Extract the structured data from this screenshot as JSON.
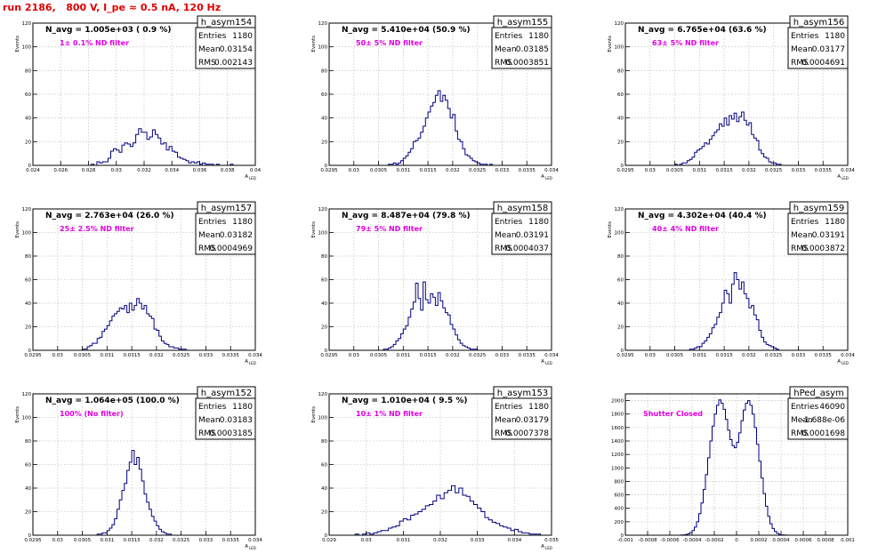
{
  "canvas_title": "run 2186,   800 V, I_pe ≈ 0.5 nA, 120 Hz",
  "colors": {
    "hist": "#000080",
    "title": "#e00000",
    "annotation": "#e000e0",
    "frame": "#000000"
  },
  "chart_data": [
    {
      "type": "histogram",
      "name": "h_asym154",
      "navg": "N_avg = 1.005e+03 ( 0.9 %)",
      "filter": "1± 0.1% ND filter",
      "stats": {
        "entries_label": "Entries",
        "entries": "1180",
        "mean_label": "Mean",
        "mean": "0.03154",
        "rms_label": "RMS",
        "rms": "0.002143"
      },
      "ylabel": "Events",
      "xlabel": "A",
      "xlabel_sub": "LED",
      "xlim": [
        0.024,
        0.04
      ],
      "ylim": [
        0,
        120
      ],
      "xticks": [
        "0.024",
        "0.026",
        "0.028",
        "0.03",
        "0.032",
        "0.034",
        "0.036",
        "0.038",
        "0.04"
      ],
      "yticks": [
        "0",
        "20",
        "40",
        "60",
        "80",
        "100",
        "120"
      ],
      "x0": 0.0282,
      "bw": 0.0002,
      "values": [
        1,
        0,
        3,
        2,
        3,
        3,
        6,
        12,
        14,
        13,
        11,
        17,
        19,
        18,
        16,
        19,
        26,
        31,
        28,
        28,
        22,
        24,
        30,
        26,
        23,
        18,
        19,
        13,
        16,
        12,
        11,
        7,
        6,
        5,
        4,
        2,
        3,
        2,
        3,
        1,
        2,
        1,
        1,
        1,
        0,
        1,
        0,
        0,
        0,
        0,
        1
      ]
    },
    {
      "type": "histogram",
      "name": "h_asym155",
      "navg": "N_avg = 5.410e+04 (50.9 %)",
      "filter": "50± 5% ND filter",
      "stats": {
        "entries_label": "Entries",
        "entries": "1180",
        "mean_label": "Mean",
        "mean": "0.03185",
        "rms_label": "RMS",
        "rms": "0.0003851"
      },
      "ylabel": "Events",
      "xlabel": "A",
      "xlabel_sub": "LED",
      "xlim": [
        0.0295,
        0.034
      ],
      "ylim": [
        0,
        120
      ],
      "xticks": [
        "0.0295",
        "0.03",
        "0.0305",
        "0.031",
        "0.0315",
        "0.032",
        "0.0325",
        "0.033",
        "0.0335",
        "0.034"
      ],
      "yticks": [
        "0",
        "20",
        "40",
        "60",
        "80",
        "100",
        "120"
      ],
      "x0": 0.0307,
      "bw": 5e-05,
      "values": [
        1,
        1,
        2,
        1,
        2,
        4,
        6,
        8,
        11,
        14,
        20,
        21,
        23,
        28,
        33,
        40,
        45,
        50,
        53,
        59,
        63,
        54,
        59,
        55,
        48,
        40,
        43,
        29,
        22,
        20,
        14,
        9,
        8,
        6,
        4,
        3,
        2,
        1,
        1,
        1,
        0,
        1
      ]
    },
    {
      "type": "histogram",
      "name": "h_asym156",
      "navg": "N_avg = 6.765e+04 (63.6 %)",
      "filter": "63± 5% ND filter",
      "stats": {
        "entries_label": "Entries",
        "entries": "1180",
        "mean_label": "Mean",
        "mean": "0.03177",
        "rms_label": "RMS",
        "rms": "0.0004691"
      },
      "ylabel": "Events",
      "xlabel": "A",
      "xlabel_sub": "LED",
      "xlim": [
        0.0295,
        0.034
      ],
      "ylim": [
        0,
        120
      ],
      "xticks": [
        "0.0295",
        "0.03",
        "0.0305",
        "0.031",
        "0.0315",
        "0.032",
        "0.0325",
        "0.033",
        "0.0335",
        "0.034"
      ],
      "yticks": [
        "0",
        "20",
        "40",
        "60",
        "80",
        "100",
        "120"
      ],
      "x0": 0.0305,
      "bw": 5e-05,
      "values": [
        1,
        0,
        1,
        2,
        2,
        4,
        5,
        7,
        11,
        13,
        14,
        16,
        19,
        18,
        22,
        25,
        28,
        30,
        35,
        33,
        40,
        34,
        42,
        39,
        44,
        37,
        41,
        45,
        38,
        34,
        36,
        26,
        23,
        21,
        13,
        10,
        7,
        6,
        3,
        2,
        2,
        1,
        1
      ]
    },
    {
      "type": "histogram",
      "name": "h_asym157",
      "navg": "N_avg = 2.763e+04 (26.0 %)",
      "filter": "25± 2.5% ND filter",
      "stats": {
        "entries_label": "Entries",
        "entries": "1180",
        "mean_label": "Mean",
        "mean": "0.03182",
        "rms_label": "RMS",
        "rms": "0.0004969"
      },
      "ylabel": "Events",
      "xlabel": "A",
      "xlabel_sub": "LED",
      "xlim": [
        0.0295,
        0.034
      ],
      "ylim": [
        0,
        120
      ],
      "xticks": [
        "0.0295",
        "0.03",
        "0.0305",
        "0.031",
        "0.0315",
        "0.032",
        "0.0325",
        "0.033",
        "0.0335",
        "0.034"
      ],
      "yticks": [
        "0",
        "20",
        "40",
        "60",
        "80",
        "100",
        "120"
      ],
      "x0": 0.0305,
      "bw": 5e-05,
      "values": [
        1,
        1,
        3,
        4,
        6,
        6,
        10,
        11,
        16,
        18,
        21,
        25,
        29,
        31,
        33,
        36,
        35,
        38,
        32,
        40,
        34,
        38,
        44,
        40,
        35,
        38,
        31,
        29,
        27,
        18,
        17,
        12,
        8,
        6,
        5,
        3,
        3,
        2,
        2,
        1,
        1,
        1
      ]
    },
    {
      "type": "histogram",
      "name": "h_asym158",
      "navg": "N_avg = 8.487e+04 (79.8 %)",
      "filter": "79± 5% ND filter",
      "stats": {
        "entries_label": "Entries",
        "entries": "1180",
        "mean_label": "Mean",
        "mean": "0.03191",
        "rms_label": "RMS",
        "rms": "0.0004037"
      },
      "ylabel": "Events",
      "xlabel": "A",
      "xlabel_sub": "LED",
      "xlim": [
        0.0295,
        0.034
      ],
      "ylim": [
        0,
        120
      ],
      "xticks": [
        "0.0295",
        "0.03",
        "0.0305",
        "0.031",
        "0.0315",
        "0.032",
        "0.0325",
        "0.033",
        "0.0335",
        "0.034"
      ],
      "yticks": [
        "0",
        "20",
        "40",
        "60",
        "80",
        "100",
        "120"
      ],
      "x0": 0.0306,
      "bw": 5e-05,
      "values": [
        1,
        1,
        2,
        3,
        5,
        8,
        10,
        14,
        18,
        21,
        28,
        35,
        41,
        57,
        44,
        34,
        58,
        43,
        40,
        48,
        45,
        38,
        49,
        42,
        36,
        32,
        30,
        22,
        18,
        13,
        9,
        6,
        4,
        3,
        2,
        1,
        1,
        1
      ]
    },
    {
      "type": "histogram",
      "name": "h_asym159",
      "navg": "N_avg = 4.302e+04 (40.4 %)",
      "filter": "40± 4% ND filter",
      "stats": {
        "entries_label": "Entries",
        "entries": "1180",
        "mean_label": "Mean",
        "mean": "0.03191",
        "rms_label": "RMS",
        "rms": "0.0003872"
      },
      "ylabel": "Events",
      "xlabel": "A",
      "xlabel_sub": "LED",
      "xlim": [
        0.0295,
        0.034
      ],
      "ylim": [
        0,
        120
      ],
      "xticks": [
        "0.0295",
        "0.03",
        "0.0305",
        "0.031",
        "0.0315",
        "0.032",
        "0.0325",
        "0.033",
        "0.0335",
        "0.034"
      ],
      "yticks": [
        "0",
        "20",
        "40",
        "60",
        "80",
        "100",
        "120"
      ],
      "x0": 0.0308,
      "bw": 5e-05,
      "values": [
        1,
        1,
        2,
        3,
        3,
        6,
        8,
        11,
        14,
        19,
        22,
        28,
        32,
        40,
        51,
        48,
        40,
        56,
        66,
        60,
        52,
        58,
        48,
        44,
        36,
        38,
        30,
        26,
        17,
        11,
        7,
        5,
        4,
        3,
        2,
        1
      ]
    },
    {
      "type": "histogram",
      "name": "h_asym152",
      "navg": "N_avg = 1.064e+05 (100.0 %)",
      "filter": "100% (No filter)",
      "stats": {
        "entries_label": "Entries",
        "entries": "1180",
        "mean_label": "Mean",
        "mean": "0.03183",
        "rms_label": "RMS",
        "rms": "0.0003185"
      },
      "ylabel": "Events",
      "xlabel": "A",
      "xlabel_sub": "LED",
      "xlim": [
        0.0295,
        0.034
      ],
      "ylim": [
        0,
        120
      ],
      "xticks": [
        "0.0295",
        "0.03",
        "0.0305",
        "0.031",
        "0.0315",
        "0.032",
        "0.0325",
        "0.033",
        "0.0335",
        "0.034"
      ],
      "yticks": [
        "0",
        "20",
        "40",
        "60",
        "80",
        "100",
        "120"
      ],
      "x0": 0.0308,
      "bw": 5e-05,
      "values": [
        1,
        1,
        2,
        2,
        4,
        6,
        9,
        14,
        22,
        30,
        38,
        44,
        55,
        62,
        72,
        60,
        66,
        56,
        46,
        35,
        28,
        22,
        16,
        12,
        8,
        5,
        3,
        2,
        1,
        1
      ]
    },
    {
      "type": "histogram",
      "name": "h_asym153",
      "navg": "N_avg = 1.010e+04 ( 9.5 %)",
      "filter": "10± 1% ND filter",
      "stats": {
        "entries_label": "Entries",
        "entries": "1180",
        "mean_label": "Mean",
        "mean": "0.03179",
        "rms_label": "RMS",
        "rms": "0.0007378"
      },
      "ylabel": "Events",
      "xlabel": "A",
      "xlabel_sub": "LED",
      "xlim": [
        0.029,
        0.035
      ],
      "ylim": [
        0,
        120
      ],
      "xticks": [
        "0.029",
        "0.03",
        "0.031",
        "0.032",
        "0.033",
        "0.034",
        "0.035"
      ],
      "yticks": [
        "0",
        "20",
        "40",
        "60",
        "80",
        "100",
        "120"
      ],
      "x0": 0.0297,
      "bw": 0.0001,
      "values": [
        1,
        0,
        1,
        2,
        1,
        2,
        3,
        4,
        4,
        6,
        7,
        8,
        12,
        14,
        13,
        17,
        18,
        20,
        22,
        25,
        26,
        29,
        34,
        31,
        36,
        38,
        42,
        36,
        40,
        34,
        33,
        29,
        26,
        23,
        20,
        15,
        13,
        11,
        10,
        8,
        7,
        6,
        4,
        5,
        3,
        2,
        2,
        1,
        1,
        1
      ]
    },
    {
      "type": "histogram",
      "name": "hPed_asym",
      "navg": "",
      "filter": "Shutter Closed",
      "stats": {
        "entries_label": "Entries",
        "entries": "46090",
        "mean_label": "Mean",
        "mean": "-1.688e-06",
        "rms_label": "RMS",
        "rms": "0.0001698"
      },
      "ylabel": "",
      "xlabel": "",
      "xlabel_sub": "",
      "xlim": [
        -0.001,
        0.001
      ],
      "ylim": [
        0,
        2100
      ],
      "xticks": [
        "-0.001",
        "-0.0008",
        "-0.0006",
        "-0.0004",
        "-0.0002",
        "0",
        "0.0002",
        "0.0004",
        "0.0006",
        "0.0008",
        "0.001"
      ],
      "yticks": [
        "0",
        "200",
        "400",
        "600",
        "800",
        "1000",
        "1200",
        "1400",
        "1600",
        "1800",
        "2000"
      ],
      "x0": -0.0005,
      "bw": 2e-05,
      "values": [
        2,
        5,
        10,
        20,
        40,
        70,
        120,
        200,
        320,
        480,
        680,
        900,
        1150,
        1400,
        1620,
        1800,
        1930,
        2010,
        1960,
        1870,
        1720,
        1560,
        1420,
        1330,
        1300,
        1380,
        1520,
        1700,
        1860,
        1960,
        2000,
        1930,
        1800,
        1600,
        1350,
        1100,
        850,
        620,
        430,
        280,
        170,
        100,
        55,
        28,
        12,
        5,
        2,
        1,
        0,
        0
      ]
    }
  ]
}
